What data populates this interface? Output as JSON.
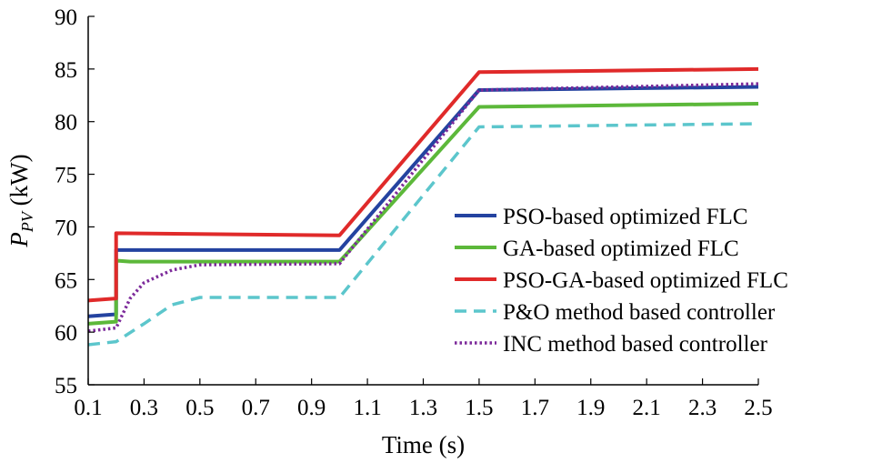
{
  "chart_data": {
    "type": "line",
    "title": "",
    "xlabel": "Time (s)",
    "ylabel": {
      "main": "P",
      "sub": "PV",
      "unit": " (kW)"
    },
    "xlim": [
      0.1,
      2.5
    ],
    "ylim": [
      55,
      90
    ],
    "xticks": [
      "0.1",
      "0.3",
      "0.5",
      "0.7",
      "0.9",
      "1.1",
      "1.3",
      "1.5",
      "1.7",
      "1.9",
      "2.1",
      "2.3",
      "2.5"
    ],
    "yticks": [
      "55",
      "60",
      "65",
      "70",
      "75",
      "80",
      "85",
      "90"
    ],
    "grid": false,
    "legend_position": "right",
    "series": [
      {
        "name": "PSO-based optimized FLC",
        "color": "#2443a0",
        "dash": "solid",
        "x": [
          0.1,
          0.2,
          0.2,
          1.0,
          1.5,
          2.5
        ],
        "y": [
          61.5,
          61.7,
          67.8,
          67.8,
          83.0,
          83.3
        ]
      },
      {
        "name": "GA-based optimized FLC",
        "color": "#5cb83a",
        "dash": "solid",
        "x": [
          0.1,
          0.2,
          0.2,
          0.25,
          1.0,
          1.5,
          2.5
        ],
        "y": [
          60.8,
          61.0,
          66.8,
          66.7,
          66.7,
          81.4,
          81.7
        ]
      },
      {
        "name": "PSO-GA-based optimized FLC",
        "color": "#e02a2a",
        "dash": "solid",
        "x": [
          0.1,
          0.2,
          0.2,
          1.0,
          1.5,
          2.5
        ],
        "y": [
          63.0,
          63.2,
          69.4,
          69.2,
          84.7,
          85.0
        ]
      },
      {
        "name": "P&O method based controller",
        "color": "#5cc6cc",
        "dash": "dashed",
        "x": [
          0.1,
          0.2,
          0.3,
          0.4,
          0.5,
          1.0,
          1.5,
          2.5
        ],
        "y": [
          58.8,
          59.1,
          60.8,
          62.6,
          63.3,
          63.3,
          79.5,
          79.8
        ]
      },
      {
        "name": "INC method based controller",
        "color": "#7c2a9a",
        "dash": "dotted",
        "x": [
          0.1,
          0.2,
          0.25,
          0.3,
          0.4,
          0.5,
          1.0,
          1.5,
          2.5
        ],
        "y": [
          60.1,
          60.4,
          63.2,
          64.7,
          65.9,
          66.4,
          66.5,
          83.0,
          83.6
        ]
      }
    ]
  }
}
